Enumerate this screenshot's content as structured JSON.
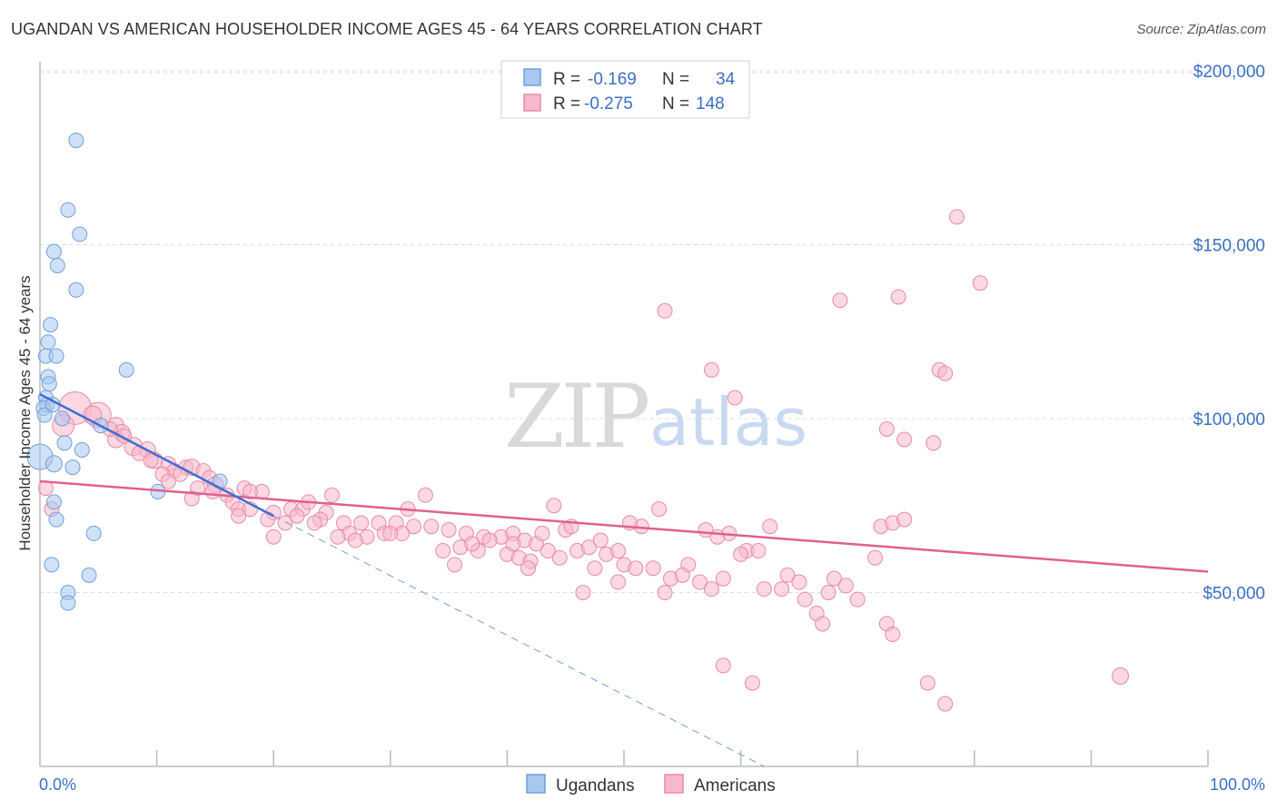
{
  "title": "UGANDAN VS AMERICAN HOUSEHOLDER INCOME AGES 45 - 64 YEARS CORRELATION CHART",
  "source": "Source: ZipAtlas.com",
  "watermark": {
    "zip": "ZIP",
    "atlas": "atlas"
  },
  "legend_top": [
    {
      "r_label": "R =",
      "r_value": "-0.169",
      "n_label": "N =",
      "n_value": "34",
      "color": "#a9c8f0",
      "stroke": "#6f9fdc"
    },
    {
      "r_label": "R =",
      "r_value": "-0.275",
      "n_label": "N =",
      "n_value": "148",
      "color": "#f7b8cb",
      "stroke": "#e98aa8"
    }
  ],
  "legend_bottom": [
    {
      "label": "Ugandans",
      "color": "#a9c8f0",
      "stroke": "#6f9fdc"
    },
    {
      "label": "Americans",
      "color": "#f7b8cb",
      "stroke": "#e98aa8"
    }
  ],
  "chart_data": {
    "type": "scatter",
    "ylabel": "Householder Income Ages 45 - 64 years",
    "xlim": [
      0,
      100
    ],
    "ylim": [
      0,
      210000
    ],
    "y_ticks": [
      {
        "value": 50000,
        "label": "$50,000"
      },
      {
        "value": 100000,
        "label": "$100,000"
      },
      {
        "value": 150000,
        "label": "$150,000"
      },
      {
        "value": 200000,
        "label": "$200,000"
      }
    ],
    "x_tick_labels": {
      "min": "0.0%",
      "max": "100.0%"
    },
    "x_minor_ticks": [
      10,
      20,
      30,
      40,
      50,
      60,
      70,
      80,
      90,
      100
    ],
    "grid": true,
    "series": [
      {
        "name": "Ugandans",
        "color": "#a9c8f0",
        "stroke": "#6f9fdc",
        "trend": {
          "x0": 0,
          "y0": 107000,
          "x1": 20,
          "y1": 72000,
          "dash_to_x": 62,
          "dash_to_y": 0,
          "color": "#3b6fd4"
        },
        "points": [
          [
            3.1,
            180000,
            8
          ],
          [
            2.4,
            160000,
            8
          ],
          [
            3.4,
            153000,
            8
          ],
          [
            1.2,
            148000,
            8
          ],
          [
            1.5,
            144000,
            8
          ],
          [
            3.1,
            137000,
            8
          ],
          [
            0.9,
            127000,
            8
          ],
          [
            0.7,
            122000,
            8
          ],
          [
            0.5,
            118000,
            8
          ],
          [
            1.4,
            118000,
            8
          ],
          [
            7.4,
            114000,
            8
          ],
          [
            0.7,
            112000,
            8
          ],
          [
            0.8,
            110000,
            8
          ],
          [
            0.5,
            106000,
            8
          ],
          [
            0.6,
            104000,
            8
          ],
          [
            0.3,
            103000,
            8
          ],
          [
            0.4,
            101000,
            8
          ],
          [
            1.9,
            100000,
            8
          ],
          [
            5.2,
            98000,
            8
          ],
          [
            2.1,
            93000,
            8
          ],
          [
            3.6,
            91000,
            8
          ],
          [
            0.0,
            89000,
            14
          ],
          [
            1.2,
            87000,
            9
          ],
          [
            2.8,
            86000,
            8
          ],
          [
            15.4,
            82000,
            8
          ],
          [
            10.1,
            79000,
            8
          ],
          [
            1.2,
            76000,
            8
          ],
          [
            1.4,
            71000,
            8
          ],
          [
            4.6,
            67000,
            8
          ],
          [
            1.0,
            58000,
            8
          ],
          [
            4.2,
            55000,
            8
          ],
          [
            2.4,
            50000,
            8
          ],
          [
            2.4,
            47000,
            8
          ],
          [
            1.1,
            104000,
            8
          ]
        ]
      },
      {
        "name": "Americans",
        "color": "#f7b8cb",
        "stroke": "#e98aa8",
        "trend": {
          "x0": 0,
          "y0": 82000,
          "x1": 100,
          "y1": 56000,
          "color": "#e0608e"
        },
        "points": [
          [
            3.0,
            103000,
            18
          ],
          [
            5.0,
            101000,
            14
          ],
          [
            2.0,
            98000,
            12
          ],
          [
            4.5,
            101000,
            10
          ],
          [
            6.5,
            98000,
            9
          ],
          [
            7.0,
            96000,
            9
          ],
          [
            6.5,
            94000,
            9
          ],
          [
            8.0,
            92000,
            10
          ],
          [
            9.2,
            91000,
            9
          ],
          [
            8.5,
            90000,
            8
          ],
          [
            9.8,
            88000,
            9
          ],
          [
            11.0,
            87000,
            8
          ],
          [
            12.5,
            86000,
            8
          ],
          [
            13.0,
            86000,
            9
          ],
          [
            11.5,
            85000,
            8
          ],
          [
            14.0,
            85000,
            8
          ],
          [
            10.5,
            84000,
            8
          ],
          [
            12.0,
            84000,
            8
          ],
          [
            14.5,
            83000,
            8
          ],
          [
            15.0,
            81000,
            9
          ],
          [
            13.5,
            80000,
            8
          ],
          [
            17.5,
            80000,
            8
          ],
          [
            19.0,
            79000,
            8
          ],
          [
            14.8,
            79000,
            8
          ],
          [
            16.0,
            78000,
            8
          ],
          [
            13.0,
            77000,
            8
          ],
          [
            16.5,
            76000,
            8
          ],
          [
            17.0,
            74000,
            8
          ],
          [
            18.0,
            74000,
            8
          ],
          [
            20.0,
            73000,
            8
          ],
          [
            21.5,
            74000,
            8
          ],
          [
            22.5,
            74000,
            8
          ],
          [
            23.0,
            76000,
            8
          ],
          [
            24.5,
            73000,
            8
          ],
          [
            17.0,
            72000,
            8
          ],
          [
            19.5,
            71000,
            8
          ],
          [
            22.0,
            72000,
            8
          ],
          [
            24.0,
            71000,
            8
          ],
          [
            26.0,
            70000,
            8
          ],
          [
            27.5,
            70000,
            8
          ],
          [
            29.0,
            70000,
            8
          ],
          [
            30.5,
            70000,
            8
          ],
          [
            32.0,
            69000,
            8
          ],
          [
            33.5,
            69000,
            8
          ],
          [
            35.0,
            68000,
            8
          ],
          [
            36.5,
            67000,
            8
          ],
          [
            38.0,
            66000,
            8
          ],
          [
            39.5,
            66000,
            8
          ],
          [
            40.5,
            67000,
            8
          ],
          [
            41.5,
            65000,
            8
          ],
          [
            42.5,
            64000,
            8
          ],
          [
            26.5,
            67000,
            8
          ],
          [
            28.0,
            66000,
            8
          ],
          [
            25.5,
            66000,
            8
          ],
          [
            29.5,
            67000,
            8
          ],
          [
            31.0,
            67000,
            8
          ],
          [
            30.0,
            67000,
            8
          ],
          [
            27.0,
            65000,
            8
          ],
          [
            20.0,
            66000,
            8
          ],
          [
            25.0,
            78000,
            8
          ],
          [
            33.0,
            78000,
            8
          ],
          [
            31.5,
            74000,
            8
          ],
          [
            37.5,
            62000,
            8
          ],
          [
            38.5,
            65000,
            8
          ],
          [
            40.0,
            61000,
            8
          ],
          [
            41.0,
            60000,
            8
          ],
          [
            42.0,
            59000,
            8
          ],
          [
            43.5,
            62000,
            8
          ],
          [
            44.5,
            60000,
            8
          ],
          [
            46.0,
            62000,
            8
          ],
          [
            47.0,
            63000,
            8
          ],
          [
            48.5,
            61000,
            8
          ],
          [
            49.5,
            62000,
            8
          ],
          [
            45.0,
            68000,
            8
          ],
          [
            43.0,
            67000,
            8
          ],
          [
            40.5,
            64000,
            8
          ],
          [
            34.5,
            62000,
            8
          ],
          [
            36.0,
            63000,
            8
          ],
          [
            37.0,
            64000,
            8
          ],
          [
            35.5,
            58000,
            8
          ],
          [
            41.8,
            57000,
            8
          ],
          [
            47.5,
            57000,
            8
          ],
          [
            50.0,
            58000,
            8
          ],
          [
            51.0,
            57000,
            8
          ],
          [
            52.5,
            57000,
            8
          ],
          [
            54.0,
            54000,
            8
          ],
          [
            55.5,
            58000,
            8
          ],
          [
            56.5,
            53000,
            8
          ],
          [
            57.5,
            51000,
            8
          ],
          [
            58.5,
            54000,
            8
          ],
          [
            59.0,
            67000,
            8
          ],
          [
            60.5,
            62000,
            8
          ],
          [
            61.5,
            62000,
            8
          ],
          [
            62.5,
            69000,
            8
          ],
          [
            63.5,
            51000,
            8
          ],
          [
            64.0,
            55000,
            8
          ],
          [
            65.5,
            48000,
            8
          ],
          [
            66.5,
            44000,
            8
          ],
          [
            67.5,
            50000,
            8
          ],
          [
            68.0,
            54000,
            8
          ],
          [
            69.0,
            52000,
            8
          ],
          [
            70.0,
            48000,
            8
          ],
          [
            71.5,
            60000,
            8
          ],
          [
            72.0,
            69000,
            8
          ],
          [
            73.0,
            70000,
            8
          ],
          [
            74.0,
            71000,
            8
          ],
          [
            58.0,
            66000,
            8
          ],
          [
            57.0,
            68000,
            8
          ],
          [
            53.0,
            74000,
            8
          ],
          [
            51.5,
            69000,
            8
          ],
          [
            50.5,
            70000,
            8
          ],
          [
            49.5,
            53000,
            8
          ],
          [
            46.5,
            50000,
            8
          ],
          [
            44.0,
            75000,
            8
          ],
          [
            45.5,
            69000,
            8
          ],
          [
            48.0,
            65000,
            8
          ],
          [
            55.0,
            55000,
            8
          ],
          [
            53.5,
            50000,
            8
          ],
          [
            60.0,
            61000,
            8
          ],
          [
            62.0,
            51000,
            8
          ],
          [
            65.0,
            53000,
            8
          ],
          [
            67.0,
            41000,
            8
          ],
          [
            72.5,
            41000,
            8
          ],
          [
            73.0,
            38000,
            8
          ],
          [
            58.5,
            29000,
            8
          ],
          [
            61.0,
            24000,
            8
          ],
          [
            76.0,
            24000,
            8
          ],
          [
            77.5,
            18000,
            8
          ],
          [
            92.5,
            26000,
            9
          ],
          [
            72.5,
            97000,
            8
          ],
          [
            74.0,
            94000,
            8
          ],
          [
            76.5,
            93000,
            8
          ],
          [
            77.0,
            114000,
            8
          ],
          [
            77.5,
            113000,
            8
          ],
          [
            57.5,
            114000,
            8
          ],
          [
            59.5,
            106000,
            8
          ],
          [
            53.5,
            131000,
            8
          ],
          [
            68.5,
            134000,
            8
          ],
          [
            73.5,
            135000,
            8
          ],
          [
            80.5,
            139000,
            8
          ],
          [
            78.5,
            158000,
            8
          ],
          [
            9.5,
            88000,
            8
          ],
          [
            7.2,
            95000,
            8
          ],
          [
            11.0,
            82000,
            8
          ],
          [
            18.0,
            79000,
            8
          ],
          [
            21.0,
            70000,
            8
          ],
          [
            23.5,
            70000,
            8
          ],
          [
            6.0,
            97000,
            8
          ],
          [
            0.5,
            80000,
            8
          ],
          [
            1.0,
            74000,
            8
          ]
        ]
      }
    ]
  }
}
